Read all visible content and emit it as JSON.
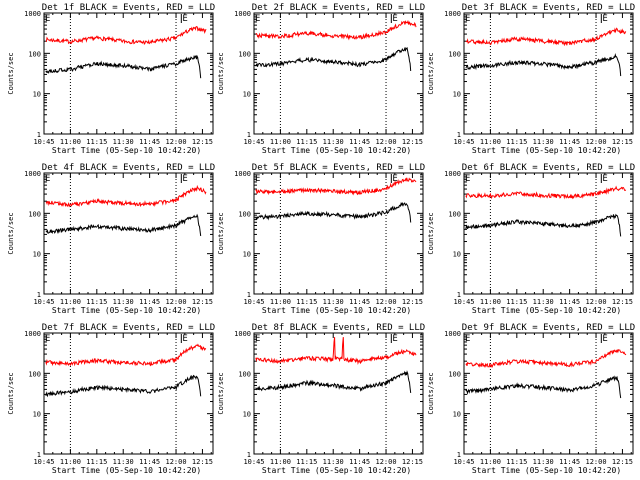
{
  "colors": {
    "events": "#000000",
    "lld": "#ff0000",
    "axis": "#000000",
    "marker": "#000000"
  },
  "xlabel": "Start Time (05-Sep-10 10:42:20)",
  "ylabel": "Counts/sec",
  "x_tick_labels": [
    "10:45",
    "11:00",
    "11:15",
    "11:30",
    "11:45",
    "12:00",
    "12:15"
  ],
  "y_tick_labels": [
    "1",
    "10",
    "100",
    "1000"
  ],
  "marker_label": "E",
  "chart_data": [
    {
      "type": "line",
      "title": "Det 1f BLACK = Events, RED = LLD",
      "xlim": [
        "10:45",
        "12:21"
      ],
      "ylim": [
        1,
        1000
      ],
      "y_scale": "log",
      "dotted_lines": [
        "11:00",
        "12:00"
      ],
      "flare_markers": [
        "10:45",
        "12:03"
      ],
      "series": [
        {
          "name": "LLD",
          "x": [
            "10:46",
            "11:00",
            "11:15",
            "11:30",
            "11:45",
            "12:00",
            "12:08",
            "12:12",
            "12:17"
          ],
          "values": [
            220,
            195,
            240,
            200,
            185,
            240,
            380,
            420,
            360
          ]
        },
        {
          "name": "Events",
          "x": [
            "10:46",
            "11:00",
            "11:15",
            "11:30",
            "11:45",
            "12:00",
            "12:08",
            "12:12",
            "12:14"
          ],
          "values": [
            35,
            40,
            55,
            50,
            40,
            55,
            75,
            80,
            25
          ]
        }
      ]
    },
    {
      "type": "line",
      "title": "Det 2f BLACK = Events, RED = LLD",
      "xlim": [
        "10:45",
        "12:21"
      ],
      "ylim": [
        1,
        1000
      ],
      "y_scale": "log",
      "dotted_lines": [
        "11:00",
        "12:00"
      ],
      "flare_markers": [
        "10:45",
        "12:03"
      ],
      "series": [
        {
          "name": "LLD",
          "x": [
            "10:46",
            "11:00",
            "11:15",
            "11:30",
            "11:45",
            "12:00",
            "12:08",
            "12:12",
            "12:17"
          ],
          "values": [
            280,
            260,
            320,
            270,
            250,
            330,
            520,
            580,
            500
          ]
        },
        {
          "name": "Events",
          "x": [
            "10:46",
            "11:00",
            "11:15",
            "11:30",
            "11:45",
            "12:00",
            "12:08",
            "12:12",
            "12:14"
          ],
          "values": [
            50,
            55,
            70,
            62,
            52,
            70,
            115,
            130,
            40
          ]
        }
      ]
    },
    {
      "type": "line",
      "title": "Det 3f BLACK = Events, RED = LLD",
      "xlim": [
        "10:45",
        "12:21"
      ],
      "ylim": [
        1,
        1000
      ],
      "y_scale": "log",
      "dotted_lines": [
        "11:00",
        "12:00"
      ],
      "flare_markers": [
        "10:45",
        "12:03"
      ],
      "series": [
        {
          "name": "LLD",
          "x": [
            "10:46",
            "11:00",
            "11:15",
            "11:30",
            "11:45",
            "12:00",
            "12:08",
            "12:12",
            "12:17"
          ],
          "values": [
            200,
            185,
            230,
            200,
            175,
            230,
            340,
            380,
            320
          ]
        },
        {
          "name": "Events",
          "x": [
            "10:46",
            "11:00",
            "11:15",
            "11:30",
            "11:45",
            "12:00",
            "12:08",
            "12:12",
            "12:14"
          ],
          "values": [
            45,
            50,
            60,
            55,
            45,
            60,
            75,
            85,
            30
          ]
        }
      ]
    },
    {
      "type": "line",
      "title": "Det 4f BLACK = Events, RED = LLD",
      "xlim": [
        "10:45",
        "12:21"
      ],
      "ylim": [
        1,
        1000
      ],
      "y_scale": "log",
      "dotted_lines": [
        "11:00",
        "12:00"
      ],
      "flare_markers": [
        "10:45",
        "12:03"
      ],
      "series": [
        {
          "name": "LLD",
          "x": [
            "10:46",
            "11:00",
            "11:15",
            "11:30",
            "11:45",
            "12:00",
            "12:08",
            "12:12",
            "12:17"
          ],
          "values": [
            190,
            160,
            200,
            180,
            170,
            210,
            360,
            420,
            340
          ]
        },
        {
          "name": "Events",
          "x": [
            "10:46",
            "11:00",
            "11:15",
            "11:30",
            "11:45",
            "12:00",
            "12:08",
            "12:12",
            "12:14"
          ],
          "values": [
            35,
            40,
            48,
            42,
            38,
            50,
            75,
            85,
            25
          ]
        }
      ]
    },
    {
      "type": "line",
      "title": "Det 5f BLACK = Events, RED = LLD",
      "xlim": [
        "10:45",
        "12:21"
      ],
      "ylim": [
        1,
        1000
      ],
      "y_scale": "log",
      "dotted_lines": [
        "11:00",
        "12:00"
      ],
      "flare_markers": [
        "10:45",
        "12:03"
      ],
      "series": [
        {
          "name": "LLD",
          "x": [
            "10:46",
            "11:00",
            "11:15",
            "11:30",
            "11:45",
            "12:00",
            "12:08",
            "12:12",
            "12:17"
          ],
          "values": [
            350,
            340,
            390,
            350,
            330,
            400,
            620,
            700,
            580
          ]
        },
        {
          "name": "Events",
          "x": [
            "10:46",
            "11:00",
            "11:15",
            "11:30",
            "11:45",
            "12:00",
            "12:08",
            "12:12",
            "12:14"
          ],
          "values": [
            80,
            85,
            100,
            92,
            82,
            105,
            160,
            180,
            60
          ]
        }
      ]
    },
    {
      "type": "line",
      "title": "Det 6f BLACK = Events, RED = LLD",
      "xlim": [
        "10:45",
        "12:21"
      ],
      "ylim": [
        1,
        1000
      ],
      "y_scale": "log",
      "dotted_lines": [
        "11:00",
        "12:00"
      ],
      "flare_markers": [
        "10:45",
        "12:03"
      ],
      "series": [
        {
          "name": "LLD",
          "x": [
            "10:46",
            "11:00",
            "11:15",
            "11:30",
            "11:45",
            "12:00",
            "12:08",
            "12:12",
            "12:17"
          ],
          "values": [
            280,
            270,
            310,
            280,
            260,
            300,
            380,
            420,
            380
          ]
        },
        {
          "name": "Events",
          "x": [
            "10:46",
            "11:00",
            "11:15",
            "11:30",
            "11:45",
            "12:00",
            "12:08",
            "12:12",
            "12:14"
          ],
          "values": [
            45,
            50,
            62,
            55,
            48,
            60,
            80,
            90,
            25
          ]
        }
      ]
    },
    {
      "type": "line",
      "title": "Det 7f BLACK = Events, RED = LLD",
      "xlim": [
        "10:45",
        "12:21"
      ],
      "ylim": [
        1,
        1000
      ],
      "y_scale": "log",
      "dotted_lines": [
        "11:00",
        "12:00"
      ],
      "flare_markers": [
        "10:45",
        "12:03"
      ],
      "series": [
        {
          "name": "LLD",
          "x": [
            "10:46",
            "11:00",
            "11:15",
            "11:30",
            "11:45",
            "12:00",
            "12:08",
            "12:12",
            "12:17"
          ],
          "values": [
            190,
            170,
            210,
            185,
            175,
            220,
            420,
            480,
            390
          ]
        },
        {
          "name": "Events",
          "x": [
            "10:46",
            "11:00",
            "11:15",
            "11:30",
            "11:45",
            "12:00",
            "12:08",
            "12:12",
            "12:14"
          ],
          "values": [
            30,
            35,
            45,
            40,
            35,
            45,
            75,
            85,
            25
          ]
        }
      ]
    },
    {
      "type": "line",
      "title": "Det 8f BLACK = Events, RED = LLD",
      "xlim": [
        "10:45",
        "12:21"
      ],
      "ylim": [
        1,
        1000
      ],
      "y_scale": "log",
      "dotted_lines": [
        "11:00",
        "12:00"
      ],
      "flare_markers": [
        "10:45",
        "12:03"
      ],
      "series": [
        {
          "name": "LLD",
          "x": [
            "10:46",
            "11:00",
            "11:15",
            "11:30",
            "11:31",
            "11:31",
            "11:35",
            "11:36",
            "11:36",
            "11:45",
            "12:00",
            "12:08",
            "12:12",
            "12:17"
          ],
          "values": [
            220,
            200,
            240,
            220,
            1000,
            230,
            230,
            1000,
            220,
            200,
            250,
            330,
            360,
            300
          ]
        },
        {
          "name": "Events",
          "x": [
            "10:46",
            "11:00",
            "11:15",
            "11:30",
            "11:45",
            "12:00",
            "12:08",
            "12:12",
            "12:14"
          ],
          "values": [
            40,
            45,
            58,
            50,
            42,
            58,
            90,
            100,
            30
          ]
        }
      ]
    },
    {
      "type": "line",
      "title": "Det 9f BLACK = Events, RED = LLD",
      "xlim": [
        "10:45",
        "12:21"
      ],
      "ylim": [
        1,
        1000
      ],
      "y_scale": "log",
      "dotted_lines": [
        "11:00",
        "12:00"
      ],
      "flare_markers": [
        "10:45",
        "12:03"
      ],
      "series": [
        {
          "name": "LLD",
          "x": [
            "10:46",
            "11:00",
            "11:15",
            "11:30",
            "11:45",
            "12:00",
            "12:08",
            "12:12",
            "12:17"
          ],
          "values": [
            170,
            160,
            200,
            180,
            165,
            200,
            320,
            360,
            300
          ]
        },
        {
          "name": "Events",
          "x": [
            "10:46",
            "11:00",
            "11:15",
            "11:30",
            "11:45",
            "12:00",
            "12:08",
            "12:12",
            "12:14"
          ],
          "values": [
            35,
            40,
            50,
            45,
            38,
            50,
            70,
            80,
            25
          ]
        }
      ]
    }
  ]
}
